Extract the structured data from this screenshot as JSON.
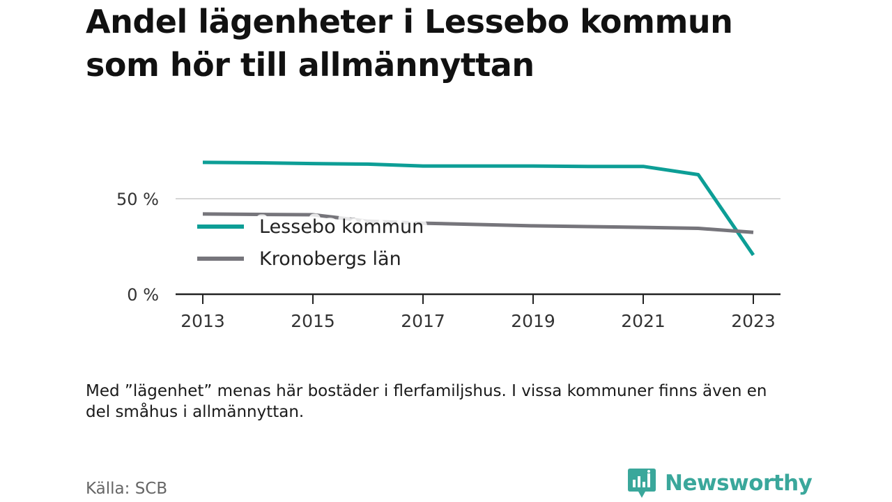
{
  "title": {
    "line1": "Andel lägenheter i Lessebo kommun",
    "line2": "som hör till allmännyttan"
  },
  "note": "Med ”lägenhet” menas här bostäder i flerfamiljshus. I vissa kommuner finns även en del småhus i allmännyttan.",
  "source": "Källa: SCB",
  "brand": {
    "name": "Newsworthy",
    "icon": "newsworthy-logo-icon",
    "color": "#3aa79b"
  },
  "chart_data": {
    "type": "line",
    "x": [
      2013,
      2014,
      2015,
      2016,
      2017,
      2018,
      2019,
      2020,
      2021,
      2022,
      2023
    ],
    "x_ticks": [
      "2013",
      "2015",
      "2017",
      "2019",
      "2021",
      "2023"
    ],
    "y_ticks": [
      "0 %",
      "50 %"
    ],
    "y_tick_values": [
      0,
      50
    ],
    "ylim": [
      0,
      75
    ],
    "grid": true,
    "legend_placement": "inside-left",
    "series": [
      {
        "name": "Lessebo kommun",
        "color": "#0d9e96",
        "values": [
          69,
          68.8,
          68.4,
          68.1,
          67.1,
          67.1,
          67.1,
          66.9,
          66.9,
          62.6,
          20.5
        ]
      },
      {
        "name": "Kronobergs län",
        "color": "#76757b",
        "values": [
          42,
          41.8,
          41.6,
          38.2,
          37.2,
          36.5,
          35.8,
          35.4,
          35.0,
          34.5,
          32.4
        ]
      }
    ]
  }
}
